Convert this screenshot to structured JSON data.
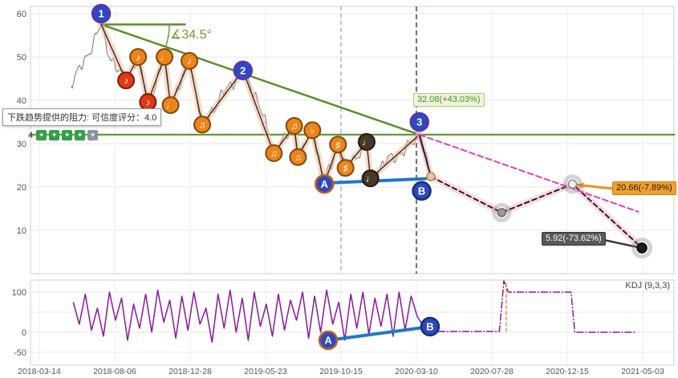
{
  "tooltip": {
    "text": "下跌趋势提供的阻力: 可信度评分：4.0"
  },
  "toolbar": {
    "count": "4",
    "icons": [
      {
        "name": "signal-badge-icon-1",
        "char": "✦",
        "bg": "#33a04a"
      },
      {
        "name": "signal-badge-icon-2",
        "char": "✦",
        "bg": "#33a04a"
      },
      {
        "name": "signal-badge-icon-3",
        "char": "✦",
        "bg": "#33a04a"
      },
      {
        "name": "signal-badge-icon-4",
        "char": "✦",
        "bg": "#33a04a"
      },
      {
        "name": "more-tools-icon",
        "char": "▾",
        "bg": "#8a93a0"
      }
    ]
  },
  "labels": {
    "angle": "∡34.5°",
    "resistance_price": "32.08(+43.03%)",
    "current_price": "20.66(-7.89%)",
    "target_price": "5.92(-73.62%)",
    "kdj": "KDJ (9,3,3)"
  },
  "colors": {
    "trend_green": "#5a8f29",
    "wave_glow": "#f6b68e",
    "projection_glow": "#f8b0c8",
    "magenta": "#e040b0",
    "blue_line": "#1e78c8",
    "kdj_purple": "#8b189b",
    "marker_orange": "#ee8418",
    "marker_red": "#df3a12",
    "marker_blue": "#2d49c0",
    "orange_label_bg": "#f2a12c"
  },
  "chart_data": [
    {
      "type": "line",
      "panel": "price",
      "x_ticks": [
        "2018-03-14",
        "2018-08-06",
        "2018-12-28",
        "2019-05-23",
        "2019-10-15",
        "2020-03-10",
        "2020-07-28",
        "2020-12-15",
        "2021-05-03"
      ],
      "y_ticks": [
        60,
        50,
        40,
        30,
        20,
        10
      ],
      "ylim": [
        0,
        61.7
      ],
      "grid": true,
      "series": [
        {
          "name": "price",
          "color": "#70757c",
          "width": 1,
          "anchors": [
            [
              0.42,
              44
            ],
            [
              0.5,
              46
            ],
            [
              0.58,
              48.5
            ],
            [
              0.68,
              52
            ],
            [
              0.76,
              55
            ],
            [
              0.82,
              57.5
            ],
            [
              0.9,
              52
            ],
            [
              1.0,
              48
            ],
            [
              1.08,
              46
            ],
            [
              1.15,
              44.6
            ],
            [
              1.31,
              50
            ],
            [
              1.44,
              39.6
            ],
            [
              1.55,
              44
            ],
            [
              1.66,
              50
            ],
            [
              1.74,
              38.9
            ],
            [
              1.88,
              44
            ],
            [
              1.99,
              49.1
            ],
            [
              2.16,
              34.4
            ],
            [
              2.3,
              38
            ],
            [
              2.5,
              43
            ],
            [
              2.7,
              46.9
            ],
            [
              2.9,
              40
            ],
            [
              3.11,
              27.8
            ],
            [
              3.25,
              31
            ],
            [
              3.38,
              34.1
            ],
            [
              3.43,
              26.9
            ],
            [
              3.62,
              33.1
            ],
            [
              3.78,
              20.7
            ],
            [
              3.96,
              29.8
            ],
            [
              4.06,
              24.4
            ],
            [
              4.2,
              27
            ],
            [
              4.34,
              30.4
            ],
            [
              4.39,
              22
            ],
            [
              4.6,
              26
            ],
            [
              4.85,
              28.5
            ],
            [
              5.04,
              32.08
            ],
            [
              5.19,
              22.4
            ]
          ]
        }
      ],
      "vlines": [
        {
          "u": 4,
          "color": "#94a2b0",
          "w": 1.2,
          "dash": "5,4"
        },
        {
          "u": 5,
          "color": "#6b7886",
          "w": 2.2,
          "dash": "6,4"
        }
      ],
      "lines": [
        {
          "name": "resistance-hline",
          "pts": [
            [
              -0.12,
              32.08
            ],
            [
              8.42,
              32.08
            ]
          ],
          "stroke": "#4f8f1f",
          "w": 2
        },
        {
          "name": "downtrend-line",
          "pts": [
            [
              0.82,
              57.5
            ],
            [
              5.04,
              32.08
            ]
          ],
          "stroke": "#5a8f29",
          "w": 2.5
        },
        {
          "name": "angle-base-line",
          "pts": [
            [
              0.82,
              57.5
            ],
            [
              1.93,
              57.5
            ]
          ],
          "stroke": "#5a8f29",
          "w": 2.5
        },
        {
          "name": "wave-path",
          "pts": [
            [
              0.82,
              57.5
            ],
            [
              1.15,
              44.6
            ],
            [
              1.31,
              50
            ],
            [
              1.44,
              39.6
            ],
            [
              1.66,
              50
            ],
            [
              1.74,
              38.9
            ],
            [
              1.99,
              49.1
            ],
            [
              2.16,
              34.4
            ],
            [
              2.7,
              46.9
            ],
            [
              3.11,
              27.8
            ],
            [
              3.38,
              34.1
            ],
            [
              3.43,
              26.9
            ],
            [
              3.62,
              33.1
            ],
            [
              3.78,
              20.7
            ],
            [
              3.96,
              29.8
            ],
            [
              4.06,
              24.4
            ],
            [
              4.34,
              30.4
            ],
            [
              4.39,
              22
            ],
            [
              5.04,
              32.08
            ]
          ],
          "stroke": "#222222",
          "w": 1.3,
          "glow": "#f6b68e",
          "gw": 8
        },
        {
          "name": "post-peak-drop",
          "pts": [
            [
              5.04,
              32.08
            ],
            [
              5.19,
              22.4
            ]
          ],
          "stroke": "#222222",
          "w": 2,
          "glow": "#f8b0c8",
          "gw": 8
        },
        {
          "name": "projection-zigzag",
          "pts": [
            [
              5.19,
              22.4
            ],
            [
              6.13,
              14.1
            ],
            [
              7.07,
              20.66
            ],
            [
              7.99,
              5.92
            ]
          ],
          "stroke": "#111111",
          "w": 1.8,
          "dash": "6,4",
          "glow": "#f8b0c8",
          "gw": 8
        },
        {
          "name": "projection-diagonal",
          "pts": [
            [
              5.04,
              32.08
            ],
            [
              7.94,
              14.3
            ]
          ],
          "stroke": "#e040b0",
          "w": 2,
          "dash": "7,4"
        },
        {
          "name": "ab-support-line",
          "pts": [
            [
              3.78,
              20.9
            ],
            [
              5.12,
              21.9
            ]
          ],
          "stroke": "#1e78c8",
          "w": 4
        },
        {
          "name": "current-price-arrow",
          "pts": [
            [
              7.62,
              19.6
            ],
            [
              7.13,
              20.5
            ]
          ],
          "stroke": "#f09020",
          "w": 3,
          "arrow": true
        },
        {
          "name": "target-price-arrow",
          "pts": [
            [
              7.45,
              7.9
            ],
            [
              7.94,
              6.1
            ]
          ],
          "stroke": "#3a3a3a",
          "w": 2.5
        }
      ],
      "markers": [
        {
          "name": "pivot-1",
          "u": 0.82,
          "v": 60.0,
          "label": "1",
          "kind": "num"
        },
        {
          "name": "pivot-2",
          "u": 2.7,
          "v": 46.9,
          "label": "2",
          "kind": "num"
        },
        {
          "name": "pivot-3",
          "u": 5.04,
          "v": 35.0,
          "label": "3",
          "kind": "num"
        },
        {
          "name": "point-a",
          "u": 3.78,
          "v": 20.7,
          "label": "A",
          "kind": "a"
        },
        {
          "name": "point-b",
          "u": 5.07,
          "v": 19.1,
          "label": "B",
          "kind": "b"
        },
        {
          "name": "wave-note-1",
          "u": 1.15,
          "v": 44.6,
          "label": "♪",
          "kind": "red"
        },
        {
          "name": "wave-note-2",
          "u": 1.31,
          "v": 50.0,
          "label": "♪",
          "kind": "orange"
        },
        {
          "name": "wave-note-3",
          "u": 1.44,
          "v": 39.6,
          "label": "♪",
          "kind": "red"
        },
        {
          "name": "wave-note-4",
          "u": 1.66,
          "v": 50.0,
          "label": "♩",
          "kind": "orange"
        },
        {
          "name": "wave-note-5",
          "u": 1.74,
          "v": 38.9,
          "label": "♩",
          "kind": "orange"
        },
        {
          "name": "wave-note-6",
          "u": 1.99,
          "v": 49.1,
          "label": "♪",
          "kind": "orange"
        },
        {
          "name": "wave-note-7",
          "u": 2.16,
          "v": 34.4,
          "label": "♫",
          "kind": "orange"
        },
        {
          "name": "wave-note-8",
          "u": 3.11,
          "v": 27.8,
          "label": "♫",
          "kind": "orange"
        },
        {
          "name": "wave-note-9",
          "u": 3.38,
          "v": 34.1,
          "label": "♫",
          "kind": "orange"
        },
        {
          "name": "wave-note-10",
          "u": 3.43,
          "v": 26.9,
          "label": "♫",
          "kind": "orange"
        },
        {
          "name": "wave-note-11",
          "u": 3.62,
          "v": 33.1,
          "label": "♭",
          "kind": "orange"
        },
        {
          "name": "wave-note-12",
          "u": 3.96,
          "v": 29.8,
          "label": "♯",
          "kind": "orange"
        },
        {
          "name": "wave-note-13",
          "u": 4.06,
          "v": 24.4,
          "label": "♯",
          "kind": "orange"
        },
        {
          "name": "wave-note-14",
          "u": 4.34,
          "v": 30.4,
          "label": "♩",
          "kind": "dark"
        },
        {
          "name": "wave-note-15",
          "u": 4.39,
          "v": 22.0,
          "label": "♩",
          "kind": "dark"
        }
      ],
      "points": [
        {
          "name": "price-drop-end",
          "u": 5.19,
          "v": 22.4,
          "r": 5,
          "fill": "#cccccc",
          "stroke": "#e07820",
          "halo": false
        },
        {
          "name": "projection-low",
          "u": 6.13,
          "v": 14.1,
          "r": 5,
          "fill": "#9a9a9a",
          "stroke": "#6a6a6a",
          "halo": true
        },
        {
          "name": "projection-current",
          "u": 7.07,
          "v": 20.66,
          "r": 5,
          "fill": "#f2f2f2",
          "stroke": "#888888",
          "halo": true
        },
        {
          "name": "projection-target",
          "u": 7.99,
          "v": 5.92,
          "r": 6,
          "fill": "#1d1d1d",
          "stroke": "#000000",
          "halo": true
        }
      ]
    },
    {
      "type": "line",
      "panel": "kdj",
      "title": "KDJ (9,3,3)",
      "y_ticks": [
        100,
        0,
        -50
      ],
      "ylim": [
        -82,
        130
      ],
      "series": [
        {
          "name": "kdj",
          "color": "#8b189b",
          "width": 1.5,
          "u0": 0.45,
          "du": 0.08,
          "values": [
            75,
            20,
            95,
            5,
            60,
            -10,
            100,
            30,
            85,
            -20,
            70,
            10,
            95,
            0,
            105,
            25,
            80,
            -15,
            90,
            5,
            100,
            20,
            60,
            -25,
            95,
            10,
            105,
            0,
            85,
            -20,
            100,
            15,
            70,
            -10,
            95,
            5,
            80,
            30,
            100,
            -15,
            90,
            0,
            105,
            20,
            75,
            -20,
            95,
            10,
            100,
            -5,
            85,
            15,
            95,
            -10,
            100,
            5,
            90,
            40,
            15
          ]
        }
      ],
      "lines": [
        {
          "name": "kdj-projection",
          "pts": [
            [
              5.25,
              2
            ],
            [
              6.1,
              2
            ],
            [
              6.16,
              128
            ],
            [
              6.22,
              100
            ],
            [
              7.05,
              100
            ],
            [
              7.1,
              0
            ],
            [
              7.92,
              0
            ]
          ],
          "stroke": "#8b189b",
          "w": 1.5,
          "dash": "1,3,8,3"
        },
        {
          "name": "kdj-spike-overlay",
          "pts": [
            [
              6.19,
              2
            ],
            [
              6.19,
              124
            ]
          ],
          "stroke": "#e07820",
          "w": 1.2,
          "dash": "4,3"
        },
        {
          "name": "kdj-ab-line",
          "pts": [
            [
              3.83,
              -20
            ],
            [
              5.18,
              14
            ]
          ],
          "stroke": "#1e78c8",
          "w": 4
        }
      ],
      "markers": [
        {
          "name": "kdj-point-a",
          "u": 3.83,
          "v": -20,
          "label": "A",
          "kind": "a"
        },
        {
          "name": "kdj-point-b",
          "u": 5.18,
          "v": 14,
          "label": "B",
          "kind": "b"
        }
      ]
    }
  ]
}
